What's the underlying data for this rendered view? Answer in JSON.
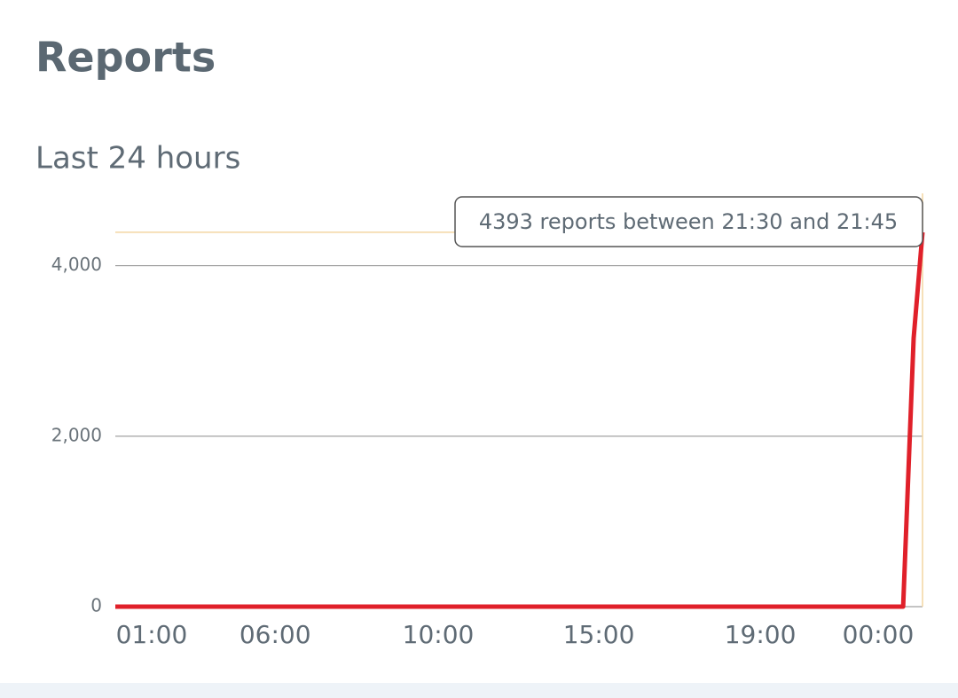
{
  "header": {
    "title": "Reports"
  },
  "chart_data": {
    "type": "line",
    "title": "Last 24 hours",
    "x": [
      0,
      20,
      40,
      60,
      80,
      97.6,
      98.9,
      100
    ],
    "series": [
      {
        "name": "Reports",
        "color": "#e0202a",
        "values": [
          0,
          0,
          0,
          0,
          0,
          0,
          3150,
          4393
        ]
      }
    ],
    "xlim": [
      0,
      100
    ],
    "xticks": [
      {
        "value": 4.5,
        "label": "01:00"
      },
      {
        "value": 19.8,
        "label": "06:00"
      },
      {
        "value": 40,
        "label": "10:00"
      },
      {
        "value": 59.9,
        "label": "15:00"
      },
      {
        "value": 79.9,
        "label": "19:00"
      },
      {
        "value": 94.5,
        "label": "00:00"
      }
    ],
    "ylim": [
      0,
      4850
    ],
    "yticks": [
      {
        "value": 0,
        "label": "0"
      },
      {
        "value": 2000,
        "label": "2,000"
      },
      {
        "value": 4000,
        "label": "4,000"
      }
    ],
    "grid": true,
    "annotation": "4393 reports between 21:30 and 21:45"
  }
}
